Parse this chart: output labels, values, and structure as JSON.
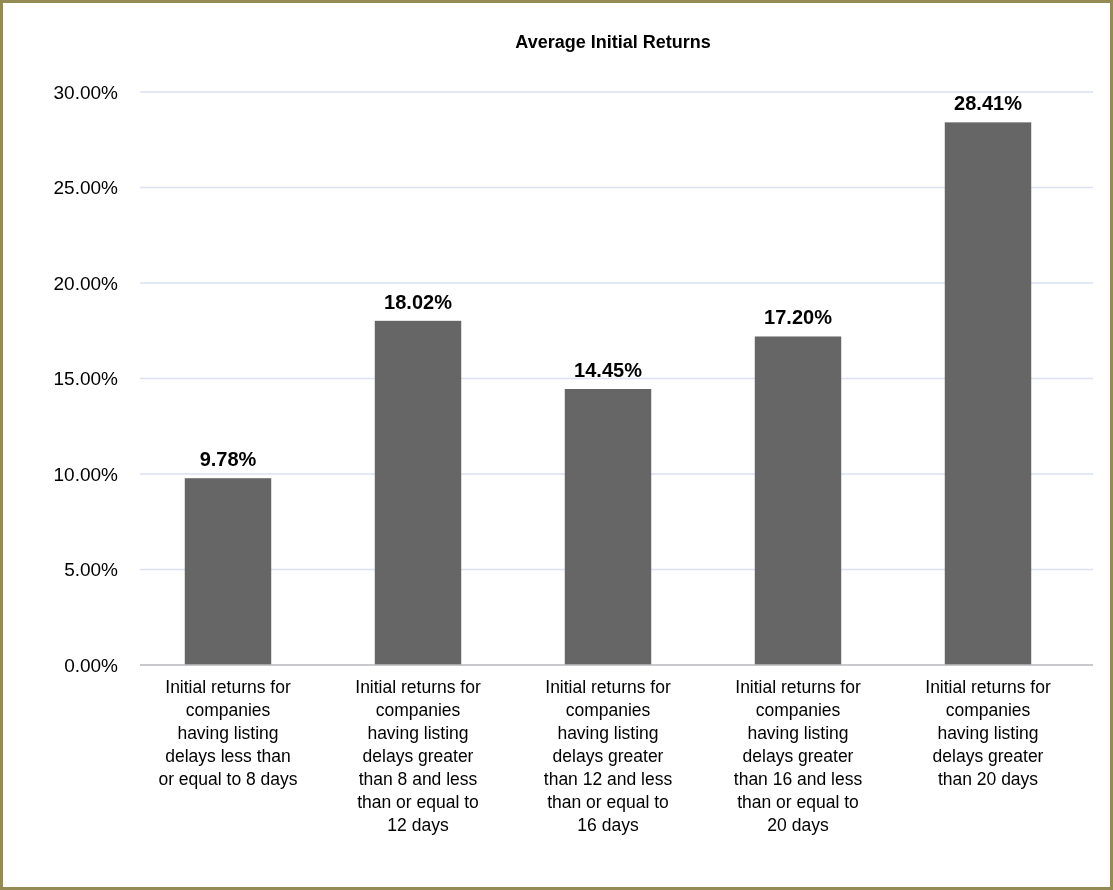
{
  "chart_data": {
    "type": "bar",
    "title": "Average Initial Returns",
    "categories": [
      "Initial returns for companies having listing delays less than or equal to 8 days",
      "Initial returns for companies having listing delays greater than 8 and less than or equal to 12 days",
      "Initial returns for companies having listing delays greater than 12 and less than or equal to 16 days",
      "Initial returns for companies having listing delays greater than 16 and less than or equal to 20 days",
      "Initial returns for companies having listing delays greater than 20 days"
    ],
    "values": [
      9.78,
      18.02,
      14.45,
      17.2,
      28.41
    ],
    "value_labels": [
      "9.78%",
      "18.02%",
      "14.45%",
      "17.20%",
      "28.41%"
    ],
    "color": "#666666",
    "ylim": [
      0,
      30
    ],
    "yticks": [
      {
        "value": 0,
        "label": "0.00%"
      },
      {
        "value": 5,
        "label": "5.00%"
      },
      {
        "value": 10,
        "label": "10.00%"
      },
      {
        "value": 15,
        "label": "15.00%"
      },
      {
        "value": 20,
        "label": "20.00%"
      },
      {
        "value": 25,
        "label": "25.00%"
      },
      {
        "value": 30,
        "label": "30.00%"
      }
    ],
    "grid": "y"
  }
}
